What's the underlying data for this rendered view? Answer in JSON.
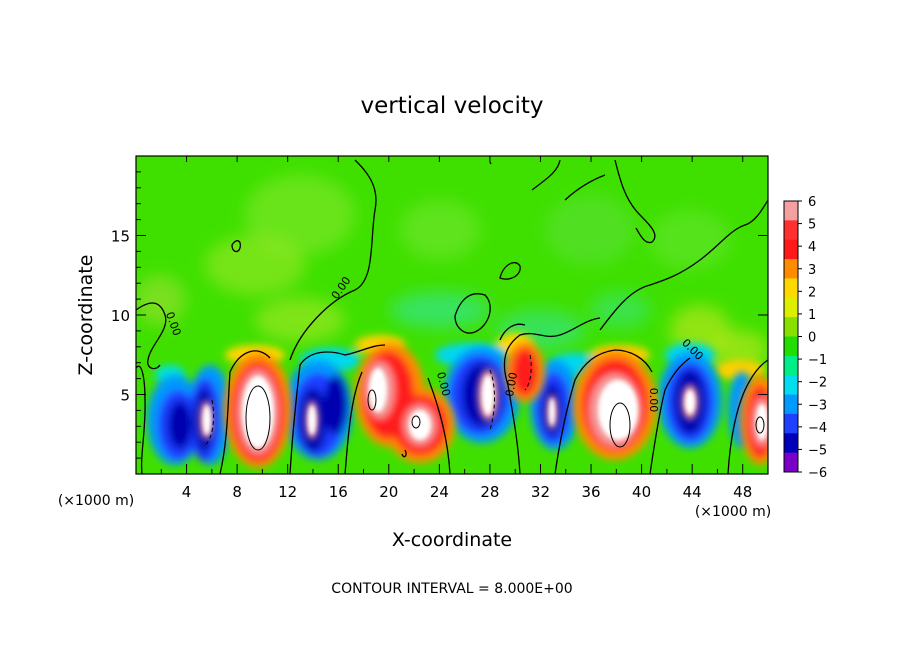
{
  "chart_data": {
    "type": "heatmap",
    "title": "vertical velocity",
    "xlabel": "X-coordinate",
    "ylabel": "Z-coordinate",
    "x_unit_left": "(×1000 m)",
    "x_unit_right": "(×1000 m)",
    "footer": "CONTOUR INTERVAL = 8.000E+00",
    "contour_label": "0.00",
    "xlim": [
      0,
      50
    ],
    "ylim": [
      0,
      20
    ],
    "xticks": [
      4,
      8,
      12,
      16,
      20,
      24,
      28,
      32,
      36,
      40,
      44,
      48
    ],
    "xtick_labels": [
      "4",
      "8",
      "12",
      "16",
      "20",
      "24",
      "28",
      "32",
      "36",
      "40",
      "44",
      "48"
    ],
    "yticks": [
      5,
      10,
      15
    ],
    "ytick_labels": [
      "5",
      "10",
      "15"
    ],
    "colorbar": {
      "min": -6,
      "max": 6,
      "ticks": [
        6,
        5,
        4,
        3,
        2,
        1,
        0,
        -1,
        -2,
        -3,
        -4,
        -5,
        -6
      ],
      "tick_labels": [
        "6",
        "5",
        "4",
        "3",
        "2",
        "1",
        "0",
        "−1",
        "−2",
        "−3",
        "−4",
        "−5",
        "−6"
      ],
      "colors": [
        "#f4a0a0",
        "#ff3030",
        "#ff1a1a",
        "#ff8c00",
        "#ffd800",
        "#ddee00",
        "#88e000",
        "#22dd00",
        "#00ee88",
        "#00ddee",
        "#0099ff",
        "#2040ff",
        "#0000bb",
        "#7a00c8"
      ]
    },
    "cells": [
      {
        "x": 6,
        "z": 3.5,
        "value": -4
      },
      {
        "x": 10,
        "z": 4,
        "value": 6
      },
      {
        "x": 15,
        "z": 3,
        "value": -4
      },
      {
        "x": 20,
        "z": 4.5,
        "value": 6
      },
      {
        "x": 28,
        "z": 5,
        "value": -4
      },
      {
        "x": 31,
        "z": 6,
        "value": 5
      },
      {
        "x": 39,
        "z": 3.5,
        "value": 6
      },
      {
        "x": 44,
        "z": 4,
        "value": -4
      },
      {
        "x": 49,
        "z": 3,
        "value": 6
      }
    ]
  }
}
